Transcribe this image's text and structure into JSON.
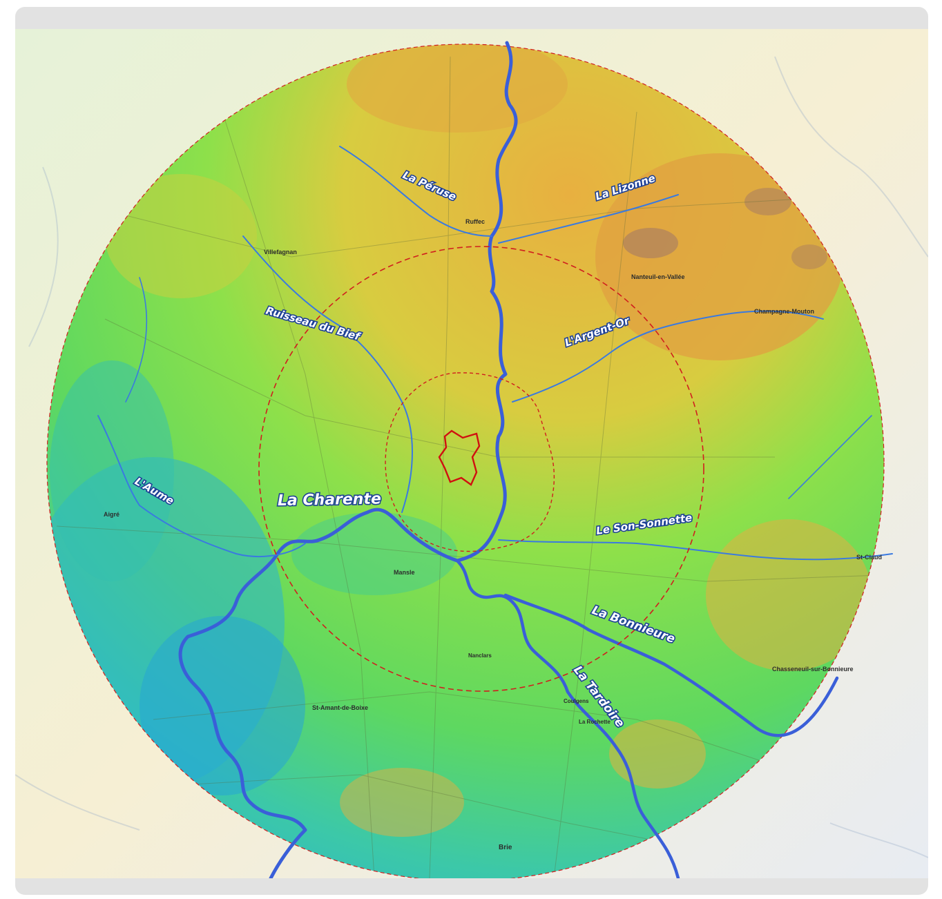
{
  "map": {
    "rivers": [
      {
        "name": "La Péruse"
      },
      {
        "name": "La Lizonne"
      },
      {
        "name": "Ruisseau du Bief"
      },
      {
        "name": "L'Argent-Or"
      },
      {
        "name": "L'Aume"
      },
      {
        "name": "La Charente"
      },
      {
        "name": "Le Son-Sonnette"
      },
      {
        "name": "La Bonnieure"
      },
      {
        "name": "La Tardoire"
      }
    ],
    "places": [
      {
        "name": "Ruffec"
      },
      {
        "name": "Villefagnan"
      },
      {
        "name": "Nanteuil-en-Vallée"
      },
      {
        "name": "Champagne-Mouton"
      },
      {
        "name": "Aigré"
      },
      {
        "name": "Mansle"
      },
      {
        "name": "St-Claud"
      },
      {
        "name": "Chasseneuil-sur-Bonnieure"
      },
      {
        "name": "St-Amant-de-Boixe"
      },
      {
        "name": "Brie"
      },
      {
        "name": "La Rochette"
      },
      {
        "name": "Nanclars"
      },
      {
        "name": "Coulgens"
      }
    ],
    "colors": {
      "river": "#3a5fd8",
      "buffer_ring": "#d01e1e",
      "site_outline": "#d01010",
      "relief_low": "#2ab4d0",
      "relief_mid": "#6fe05a",
      "relief_high": "#e8b040",
      "relief_peak": "#b4865a"
    }
  }
}
